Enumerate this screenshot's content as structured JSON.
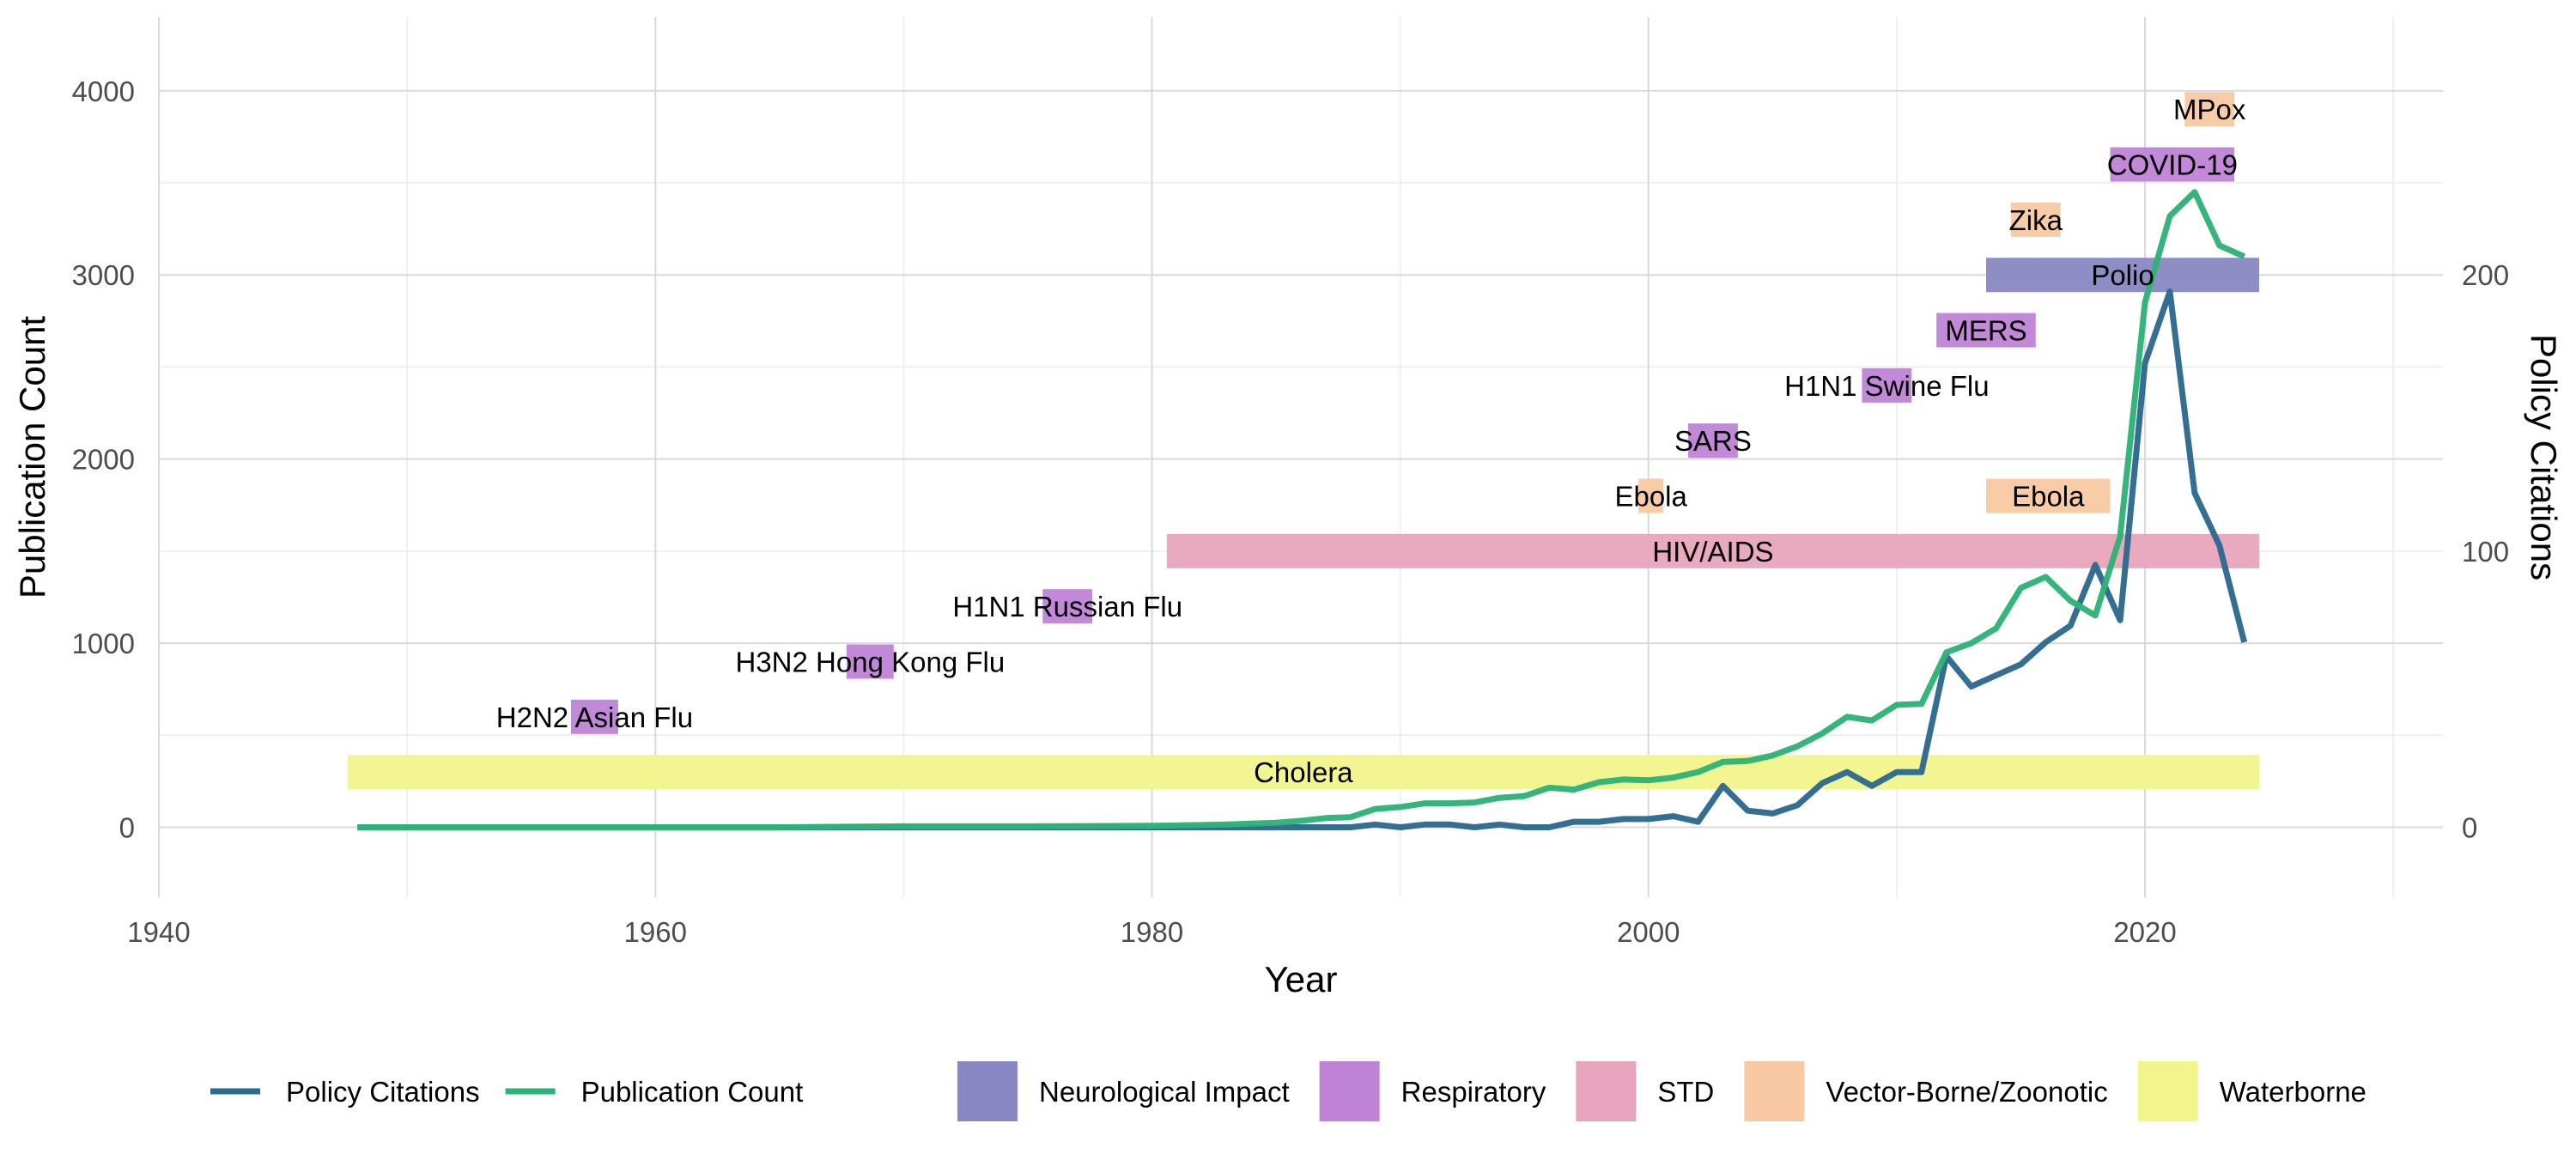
{
  "chart_data": {
    "type": "line",
    "xlabel": "Year",
    "ylabel": "Publication Count",
    "y2label": "Policy Citations",
    "xlim": [
      1940,
      2032
    ],
    "ylim": [
      -380,
      4400
    ],
    "y2_scale": "secondary axis: 200 policy citations = 3000 publication count",
    "x_ticks": [
      1940,
      1960,
      1980,
      2000,
      2020
    ],
    "y_ticks": [
      0,
      1000,
      2000,
      3000,
      4000
    ],
    "y2_ticks": [
      0,
      100,
      200
    ],
    "grid": true,
    "legend_position": "bottom",
    "series": [
      {
        "name": "Policy Citations",
        "axis": "right",
        "color": "#2d6a8f",
        "x": [
          1948,
          1950,
          1955,
          1960,
          1965,
          1970,
          1975,
          1980,
          1985,
          1988,
          1989,
          1990,
          1991,
          1992,
          1993,
          1994,
          1995,
          1996,
          1997,
          1998,
          1999,
          2000,
          2001,
          2002,
          2003,
          2004,
          2005,
          2006,
          2007,
          2008,
          2009,
          2010,
          2011,
          2012,
          2013,
          2014,
          2015,
          2016,
          2017,
          2018,
          2019,
          2020,
          2021,
          2022,
          2023,
          2024
        ],
        "y": [
          0,
          0,
          0,
          0,
          0,
          0,
          0,
          0,
          0,
          0,
          1,
          0,
          1,
          1,
          0,
          1,
          0,
          0,
          2,
          2,
          3,
          3,
          4,
          2,
          15,
          6,
          5,
          8,
          16,
          20,
          15,
          20,
          20,
          62,
          51,
          55,
          59,
          67,
          73,
          95,
          75,
          168,
          194,
          121,
          102,
          67
        ]
      },
      {
        "name": "Publication Count",
        "axis": "left",
        "color": "#2eb377",
        "x": [
          1948,
          1955,
          1960,
          1965,
          1970,
          1975,
          1980,
          1983,
          1984,
          1985,
          1986,
          1987,
          1988,
          1989,
          1990,
          1991,
          1992,
          1993,
          1994,
          1995,
          1996,
          1997,
          1998,
          1999,
          2000,
          2001,
          2002,
          2003,
          2004,
          2005,
          2006,
          2007,
          2008,
          2009,
          2010,
          2011,
          2012,
          2013,
          2014,
          2015,
          2016,
          2017,
          2018,
          2019,
          2020,
          2021,
          2022,
          2023,
          2024
        ],
        "y": [
          0,
          0,
          0,
          0,
          5,
          5,
          8,
          15,
          20,
          25,
          35,
          50,
          55,
          100,
          110,
          130,
          130,
          135,
          160,
          170,
          215,
          205,
          245,
          260,
          255,
          270,
          300,
          355,
          360,
          390,
          440,
          510,
          600,
          580,
          665,
          670,
          950,
          1000,
          1080,
          1300,
          1360,
          1230,
          1150,
          1580,
          2850,
          3320,
          3450,
          3160,
          3100
        ]
      }
    ],
    "events": [
      {
        "label": "Cholera",
        "category": "Waterborne",
        "start": 1947.6,
        "end": 2024.6,
        "y": 300
      },
      {
        "label": "H2N2 Asian Flu",
        "category": "Respiratory",
        "start": 1956.6,
        "end": 1958.5,
        "y": 600
      },
      {
        "label": "H3N2 Hong Kong Flu",
        "category": "Respiratory",
        "start": 1967.7,
        "end": 1969.6,
        "y": 900
      },
      {
        "label": "H1N1 Russian Flu",
        "category": "Respiratory",
        "start": 1975.6,
        "end": 1977.6,
        "y": 1200
      },
      {
        "label": "HIV/AIDS",
        "category": "STD",
        "start": 1980.6,
        "end": 2024.6,
        "y": 1500
      },
      {
        "label": "Ebola",
        "category": "Vector-Borne/Zoonotic",
        "start": 1999.6,
        "end": 2000.6,
        "y": 1800
      },
      {
        "label": "SARS",
        "category": "Respiratory",
        "start": 2001.6,
        "end": 2003.6,
        "y": 2100
      },
      {
        "label": "H1N1 Swine Flu",
        "category": "Respiratory",
        "start": 2008.6,
        "end": 2010.6,
        "y": 2400
      },
      {
        "label": "MERS",
        "category": "Respiratory",
        "start": 2011.6,
        "end": 2015.6,
        "y": 2700
      },
      {
        "label": "Polio",
        "category": "Neurological Impact",
        "start": 2013.6,
        "end": 2024.6,
        "y": 3000
      },
      {
        "label": "Ebola",
        "category": "Vector-Borne/Zoonotic",
        "start": 2013.6,
        "end": 2018.6,
        "y": 1800
      },
      {
        "label": "Zika",
        "category": "Vector-Borne/Zoonotic",
        "start": 2014.6,
        "end": 2016.6,
        "y": 3300
      },
      {
        "label": "COVID-19",
        "category": "Respiratory",
        "start": 2018.6,
        "end": 2023.6,
        "y": 3600
      },
      {
        "label": "MPox",
        "category": "Vector-Borne/Zoonotic",
        "start": 2021.6,
        "end": 2023.6,
        "y": 3900
      }
    ],
    "categories": [
      {
        "name": "Neurological Impact",
        "color": "#8887c3"
      },
      {
        "name": "Respiratory",
        "color": "#bf83d6"
      },
      {
        "name": "STD",
        "color": "#e8a4bc"
      },
      {
        "name": "Vector-Borne/Zoonotic",
        "color": "#f9c9a3"
      },
      {
        "name": "Waterborne",
        "color": "#f2f68a"
      }
    ]
  }
}
